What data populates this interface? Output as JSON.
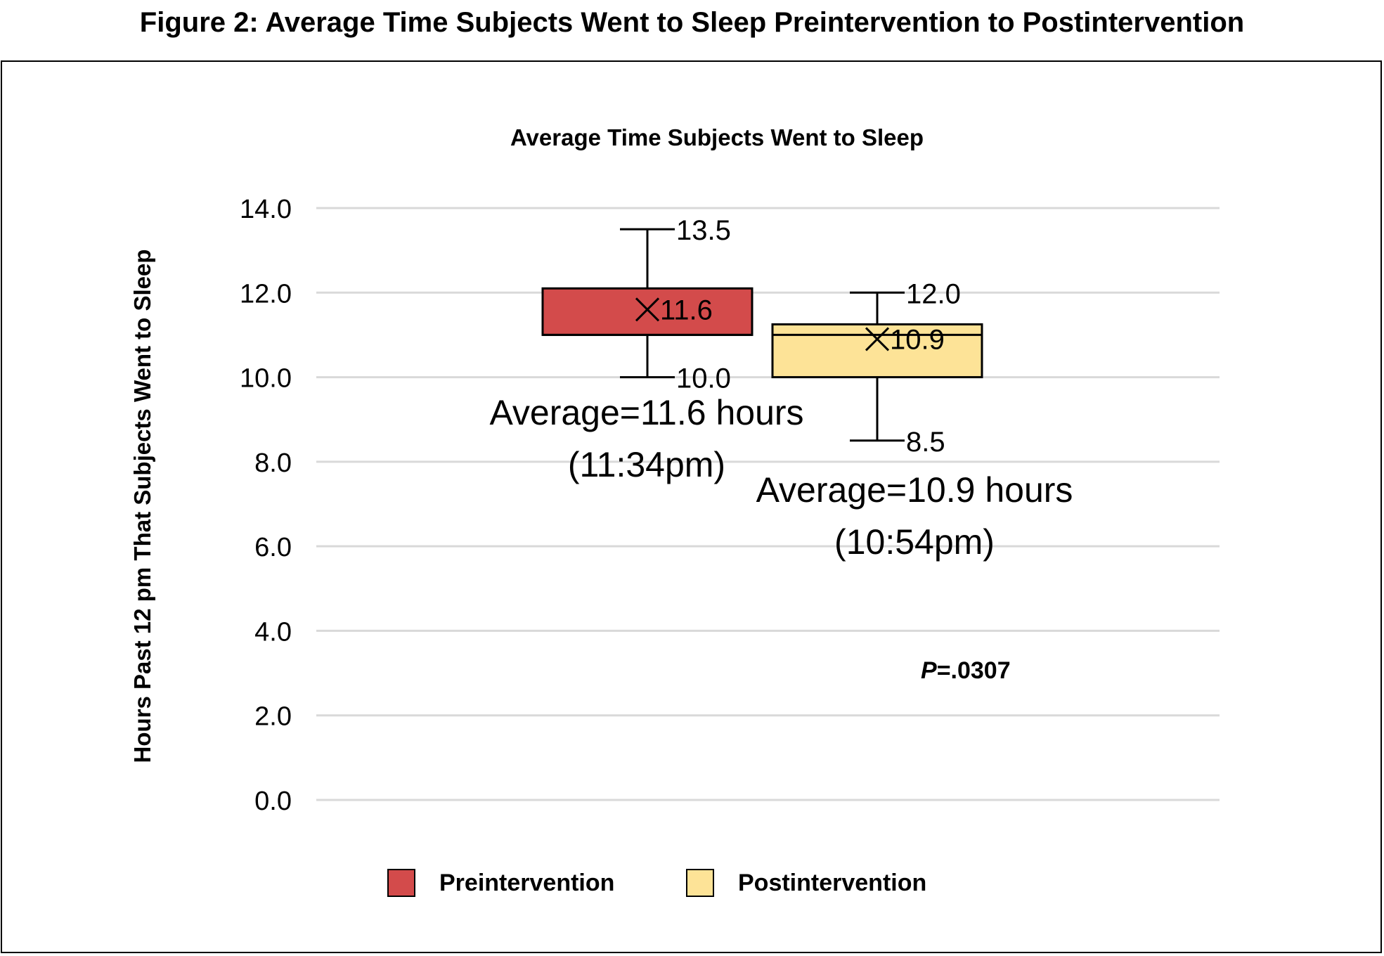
{
  "figure_title": "Figure 2: Average Time Subjects Went to Sleep Preintervention to Postintervention",
  "chart_data": {
    "type": "box",
    "title": "Average Time Subjects Went to Sleep",
    "ylabel": "Hours Past 12 pm That Subjects Went to Sleep",
    "xlabel": "",
    "ylim": [
      0,
      14
    ],
    "yticks": [
      0,
      2,
      4,
      6,
      8,
      10,
      12,
      14
    ],
    "ytick_labels": [
      "0.0",
      "2.0",
      "4.0",
      "6.0",
      "8.0",
      "10.0",
      "12.0",
      "14.0"
    ],
    "grid": true,
    "legend_position": "bottom",
    "series": [
      {
        "name": "Preintervention",
        "color": "#d34b4b",
        "min": 10.0,
        "q1": 11.0,
        "median": 11.0,
        "q3": 12.1,
        "max": 13.5,
        "mean": 11.6,
        "mean_label": "11.6",
        "max_label": "13.5",
        "min_label": "10.0",
        "annotation": [
          "Average=11.6 hours",
          "(11:34pm)"
        ]
      },
      {
        "name": "Postintervention",
        "color": "#fde397",
        "min": 8.5,
        "q1": 10.0,
        "median": 11.0,
        "q3": 11.25,
        "max": 12.0,
        "mean": 10.9,
        "mean_label": "10.9",
        "max_label": "12.0",
        "min_label": "8.5",
        "annotation": [
          "Average=10.9 hours",
          "(10:54pm)"
        ]
      }
    ],
    "p_value": {
      "prefix": "P",
      "text": "=.0307"
    }
  }
}
